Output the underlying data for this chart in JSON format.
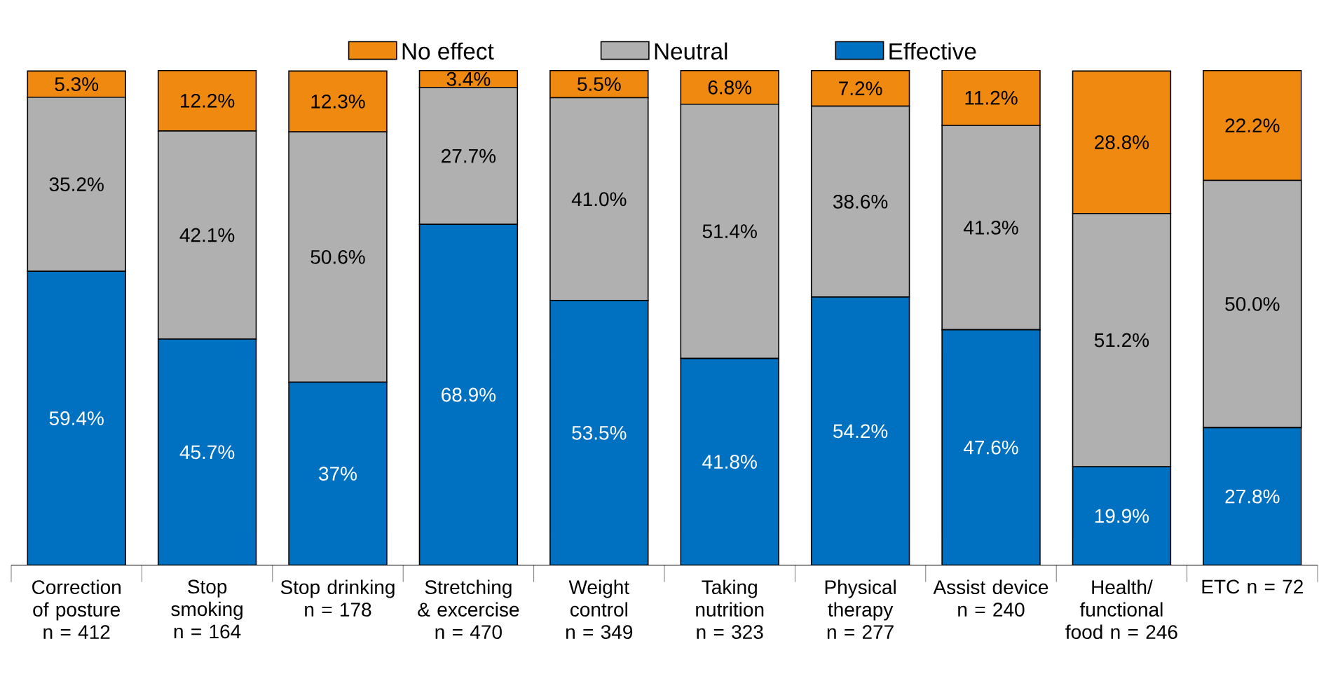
{
  "chart_data": {
    "type": "bar",
    "stacked": true,
    "legend": "top",
    "categories": [
      "Correction of posture n = 412",
      "Stop smoking n = 164",
      "Stop drinking n = 178",
      "Stretching & excercise n = 470",
      "Weight control n = 349",
      "Taking nutrition n = 323",
      "Physical therapy n = 277",
      "Assist device n = 240",
      "Health/ functional food n = 246",
      "ETC n = 72"
    ],
    "series": [
      {
        "name": "Effective",
        "color": "#0070c0",
        "values": [
          59.4,
          45.7,
          37,
          68.9,
          53.5,
          41.8,
          54.2,
          47.6,
          19.9,
          27.8
        ],
        "value_labels": [
          "59.4%",
          "45.7%",
          "37%",
          "68.9%",
          "53.5%",
          "41.8%",
          "54.2%",
          "47.6%",
          "19.9%",
          "27.8%"
        ]
      },
      {
        "name": "Neutral",
        "color": "#b0b0b0",
        "values": [
          35.2,
          42.1,
          50.6,
          27.7,
          41.0,
          51.4,
          38.6,
          41.3,
          51.2,
          50.0
        ],
        "value_labels": [
          "35.2%",
          "42.1%",
          "50.6%",
          "27.7%",
          "41.0%",
          "51.4%",
          "38.6%",
          "41.3%",
          "51.2%",
          "50.0%"
        ]
      },
      {
        "name": "No effect",
        "color": "#f0890f",
        "values": [
          5.3,
          12.2,
          12.3,
          3.4,
          5.5,
          6.8,
          7.2,
          11.2,
          28.8,
          22.2
        ],
        "value_labels": [
          "5.3%",
          "12.2%",
          "12.3%",
          "3.4%",
          "5.5%",
          "6.8%",
          "7.2%",
          "11.2%",
          "28.8%",
          "22.2%"
        ]
      }
    ]
  }
}
